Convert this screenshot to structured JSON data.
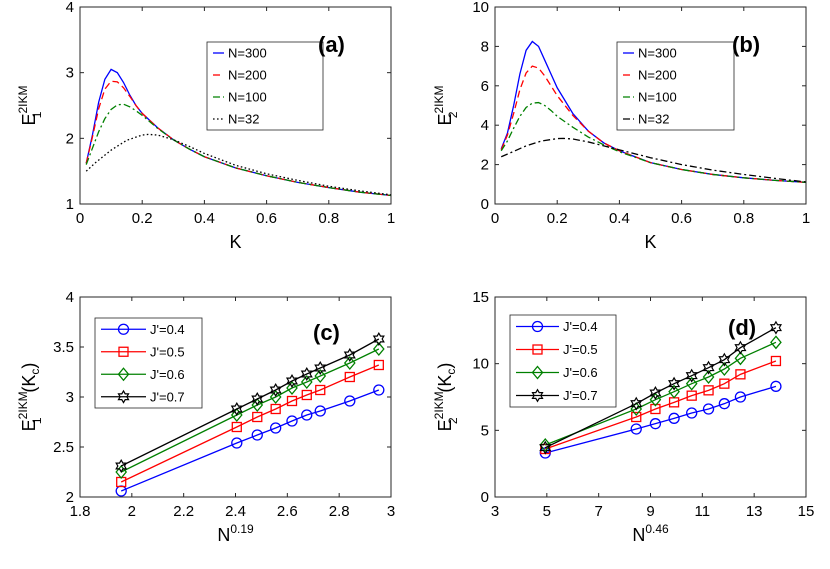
{
  "chart_data": [
    {
      "id": "a",
      "type": "line",
      "panel_label": "(a)",
      "xlabel": "K",
      "ylabel": {
        "main": "E",
        "sup": "2IKM",
        "sub": "1",
        "suffix": ""
      },
      "xlim": [
        0,
        1
      ],
      "ylim": [
        1,
        4
      ],
      "xticks": [
        0,
        0.2,
        0.4,
        0.6,
        0.8,
        1
      ],
      "xtick_labels": [
        "0",
        "0.2",
        "0.4",
        "0.6",
        "0.8",
        "1"
      ],
      "yticks": [
        1,
        2,
        3,
        4
      ],
      "ytick_labels": [
        "1",
        "2",
        "3",
        "4"
      ],
      "legend_position": "top-right",
      "series": [
        {
          "name": "N=300",
          "color": "#0000ff",
          "style": "solid",
          "marker": "none",
          "x": [
            0.02,
            0.04,
            0.06,
            0.08,
            0.1,
            0.12,
            0.14,
            0.16,
            0.18,
            0.2,
            0.25,
            0.3,
            0.35,
            0.4,
            0.5,
            0.6,
            0.7,
            0.8,
            0.9,
            1.0
          ],
          "y": [
            1.62,
            2.05,
            2.55,
            2.9,
            3.05,
            3.0,
            2.85,
            2.66,
            2.5,
            2.38,
            2.16,
            1.98,
            1.84,
            1.72,
            1.55,
            1.43,
            1.33,
            1.25,
            1.18,
            1.13
          ]
        },
        {
          "name": "N=200",
          "color": "#ff0000",
          "style": "dashed",
          "marker": "none",
          "x": [
            0.02,
            0.04,
            0.06,
            0.08,
            0.1,
            0.12,
            0.14,
            0.16,
            0.18,
            0.2,
            0.25,
            0.3,
            0.35,
            0.4,
            0.5,
            0.6,
            0.7,
            0.8,
            0.9,
            1.0
          ],
          "y": [
            1.62,
            2.02,
            2.45,
            2.75,
            2.87,
            2.86,
            2.77,
            2.64,
            2.5,
            2.38,
            2.16,
            1.98,
            1.84,
            1.72,
            1.55,
            1.43,
            1.33,
            1.25,
            1.18,
            1.13
          ]
        },
        {
          "name": "N=100",
          "color": "#008000",
          "style": "dashdot",
          "marker": "none",
          "x": [
            0.02,
            0.04,
            0.06,
            0.08,
            0.1,
            0.12,
            0.14,
            0.16,
            0.18,
            0.2,
            0.25,
            0.3,
            0.35,
            0.4,
            0.5,
            0.6,
            0.7,
            0.8,
            0.9,
            1.0
          ],
          "y": [
            1.6,
            1.85,
            2.1,
            2.3,
            2.44,
            2.51,
            2.52,
            2.48,
            2.42,
            2.35,
            2.15,
            1.98,
            1.84,
            1.72,
            1.55,
            1.43,
            1.33,
            1.25,
            1.18,
            1.13
          ]
        },
        {
          "name": "N=32",
          "color": "#000000",
          "style": "dotted",
          "marker": "none",
          "x": [
            0.02,
            0.05,
            0.1,
            0.15,
            0.2,
            0.22,
            0.25,
            0.3,
            0.35,
            0.4,
            0.5,
            0.6,
            0.7,
            0.8,
            0.9,
            1.0
          ],
          "y": [
            1.5,
            1.63,
            1.82,
            1.97,
            2.05,
            2.06,
            2.05,
            1.98,
            1.88,
            1.77,
            1.59,
            1.46,
            1.36,
            1.27,
            1.2,
            1.14
          ]
        }
      ]
    },
    {
      "id": "b",
      "type": "line",
      "panel_label": "(b)",
      "xlabel": "K",
      "ylabel": {
        "main": "E",
        "sup": "2IKM",
        "sub": "2",
        "suffix": ""
      },
      "xlim": [
        0,
        1
      ],
      "ylim": [
        0,
        10
      ],
      "xticks": [
        0,
        0.2,
        0.4,
        0.6,
        0.8,
        1
      ],
      "xtick_labels": [
        "0",
        "0.2",
        "0.4",
        "0.6",
        "0.8",
        "1"
      ],
      "yticks": [
        0,
        2,
        4,
        6,
        8,
        10
      ],
      "ytick_labels": [
        "0",
        "2",
        "4",
        "6",
        "8",
        "10"
      ],
      "legend_position": "top-right",
      "series": [
        {
          "name": "N=300",
          "color": "#0000ff",
          "style": "solid",
          "marker": "none",
          "x": [
            0.02,
            0.04,
            0.06,
            0.08,
            0.1,
            0.12,
            0.14,
            0.16,
            0.18,
            0.2,
            0.25,
            0.3,
            0.35,
            0.4,
            0.5,
            0.6,
            0.7,
            0.8,
            0.9,
            1.0
          ],
          "y": [
            2.8,
            3.6,
            5.0,
            6.6,
            7.8,
            8.25,
            8.0,
            7.3,
            6.6,
            5.9,
            4.6,
            3.7,
            3.1,
            2.7,
            2.1,
            1.75,
            1.5,
            1.33,
            1.2,
            1.1
          ]
        },
        {
          "name": "N=200",
          "color": "#ff0000",
          "style": "dashed",
          "marker": "none",
          "x": [
            0.02,
            0.04,
            0.06,
            0.08,
            0.1,
            0.12,
            0.14,
            0.16,
            0.18,
            0.2,
            0.25,
            0.3,
            0.35,
            0.4,
            0.5,
            0.6,
            0.7,
            0.8,
            0.9,
            1.0
          ],
          "y": [
            2.75,
            3.5,
            4.6,
            5.8,
            6.65,
            7.0,
            6.9,
            6.5,
            6.0,
            5.5,
            4.5,
            3.7,
            3.1,
            2.7,
            2.1,
            1.75,
            1.5,
            1.33,
            1.2,
            1.1
          ]
        },
        {
          "name": "N=100",
          "color": "#008000",
          "style": "dashdot",
          "marker": "none",
          "x": [
            0.02,
            0.04,
            0.06,
            0.08,
            0.1,
            0.12,
            0.14,
            0.16,
            0.18,
            0.2,
            0.25,
            0.3,
            0.35,
            0.4,
            0.5,
            0.6,
            0.7,
            0.8,
            0.9,
            1.0
          ],
          "y": [
            2.7,
            3.2,
            3.85,
            4.45,
            4.9,
            5.12,
            5.15,
            5.0,
            4.75,
            4.45,
            3.9,
            3.4,
            3.0,
            2.65,
            2.1,
            1.75,
            1.5,
            1.33,
            1.2,
            1.1
          ]
        },
        {
          "name": "N=32",
          "color": "#000000",
          "style": "dashdot",
          "marker": "none",
          "x": [
            0.02,
            0.05,
            0.1,
            0.15,
            0.2,
            0.22,
            0.25,
            0.3,
            0.35,
            0.4,
            0.5,
            0.6,
            0.7,
            0.8,
            0.9,
            1.0
          ],
          "y": [
            2.4,
            2.6,
            2.95,
            3.2,
            3.32,
            3.33,
            3.3,
            3.15,
            2.95,
            2.75,
            2.35,
            2.0,
            1.72,
            1.5,
            1.3,
            1.12
          ]
        }
      ]
    },
    {
      "id": "c",
      "type": "line",
      "panel_label": "(c)",
      "xlabel": {
        "main": "N",
        "sup": "0.19"
      },
      "ylabel": {
        "main": "E",
        "sup": "2IKM",
        "sub": "1",
        "suffix": "(K",
        "suffix_sub": "c",
        "suffix_end": ")"
      },
      "xlim": [
        1.8,
        3
      ],
      "ylim": [
        2,
        4
      ],
      "xticks": [
        1.8,
        2,
        2.2,
        2.4,
        2.6,
        2.8,
        3
      ],
      "xtick_labels": [
        "1.8",
        "2",
        "2.2",
        "2.4",
        "2.6",
        "2.8",
        "3"
      ],
      "yticks": [
        2,
        2.5,
        3,
        3.5,
        4
      ],
      "ytick_labels": [
        "2",
        "2.5",
        "3",
        "3.5",
        "4"
      ],
      "legend_position": "top-left",
      "series": [
        {
          "name": "J'=0.4",
          "color": "#0000ff",
          "style": "solid",
          "marker": "circle",
          "x": [
            1.959,
            2.405,
            2.484,
            2.555,
            2.618,
            2.675,
            2.727,
            2.841,
            2.953
          ],
          "y": [
            2.06,
            2.54,
            2.62,
            2.69,
            2.76,
            2.82,
            2.86,
            2.96,
            3.07
          ]
        },
        {
          "name": "J'=0.5",
          "color": "#ff0000",
          "style": "solid",
          "marker": "square",
          "x": [
            1.959,
            2.405,
            2.484,
            2.555,
            2.618,
            2.675,
            2.727,
            2.841,
            2.953
          ],
          "y": [
            2.15,
            2.7,
            2.8,
            2.88,
            2.96,
            3.02,
            3.07,
            3.2,
            3.32
          ]
        },
        {
          "name": "J'=0.6",
          "color": "#008000",
          "style": "solid",
          "marker": "diamond",
          "x": [
            1.959,
            2.405,
            2.484,
            2.555,
            2.618,
            2.675,
            2.727,
            2.841,
            2.953
          ],
          "y": [
            2.25,
            2.82,
            2.92,
            3.0,
            3.09,
            3.15,
            3.21,
            3.34,
            3.48
          ]
        },
        {
          "name": "J'=0.7",
          "color": "#000000",
          "style": "solid",
          "marker": "hexagram",
          "x": [
            1.959,
            2.405,
            2.484,
            2.555,
            2.618,
            2.675,
            2.727,
            2.841,
            2.953
          ],
          "y": [
            2.31,
            2.88,
            2.98,
            3.07,
            3.16,
            3.23,
            3.29,
            3.42,
            3.58
          ]
        }
      ]
    },
    {
      "id": "d",
      "type": "line",
      "panel_label": "(d)",
      "xlabel": {
        "main": "N",
        "sup": "0.46"
      },
      "ylabel": {
        "main": "E",
        "sup": "2IKM",
        "sub": "2",
        "suffix": "(K",
        "suffix_sub": "c",
        "suffix_end": ")"
      },
      "xlim": [
        3,
        15
      ],
      "ylim": [
        0,
        15
      ],
      "xticks": [
        3,
        5,
        7,
        9,
        11,
        13,
        15
      ],
      "xtick_labels": [
        "3",
        "5",
        "7",
        "9",
        "11",
        "13",
        "15"
      ],
      "yticks": [
        0,
        5,
        10,
        15
      ],
      "ytick_labels": [
        "0",
        "5",
        "10",
        "15"
      ],
      "legend_position": "top-left",
      "series": [
        {
          "name": "J'=0.4",
          "color": "#0000ff",
          "style": "solid",
          "marker": "circle",
          "x": [
            4.94,
            8.45,
            9.19,
            9.91,
            10.59,
            11.24,
            11.85,
            12.47,
            13.84
          ],
          "y": [
            3.3,
            5.1,
            5.5,
            5.9,
            6.3,
            6.6,
            7.0,
            7.5,
            8.3
          ]
        },
        {
          "name": "J'=0.5",
          "color": "#ff0000",
          "style": "solid",
          "marker": "square",
          "x": [
            4.94,
            8.45,
            9.19,
            9.91,
            10.59,
            11.24,
            11.85,
            12.47,
            13.84
          ],
          "y": [
            3.6,
            6.0,
            6.6,
            7.1,
            7.6,
            8.0,
            8.5,
            9.2,
            10.2
          ]
        },
        {
          "name": "J'=0.6",
          "color": "#008000",
          "style": "solid",
          "marker": "diamond",
          "x": [
            4.94,
            8.45,
            9.19,
            9.91,
            10.59,
            11.24,
            11.85,
            12.47,
            13.84
          ],
          "y": [
            3.9,
            6.6,
            7.3,
            7.9,
            8.5,
            9.0,
            9.6,
            10.4,
            11.6
          ]
        },
        {
          "name": "J'=0.7",
          "color": "#000000",
          "style": "solid",
          "marker": "hexagram",
          "x": [
            4.94,
            8.45,
            9.19,
            9.91,
            10.59,
            11.24,
            11.85,
            12.47,
            13.84
          ],
          "y": [
            3.7,
            7.0,
            7.8,
            8.5,
            9.1,
            9.7,
            10.3,
            11.2,
            12.7
          ]
        }
      ]
    }
  ]
}
